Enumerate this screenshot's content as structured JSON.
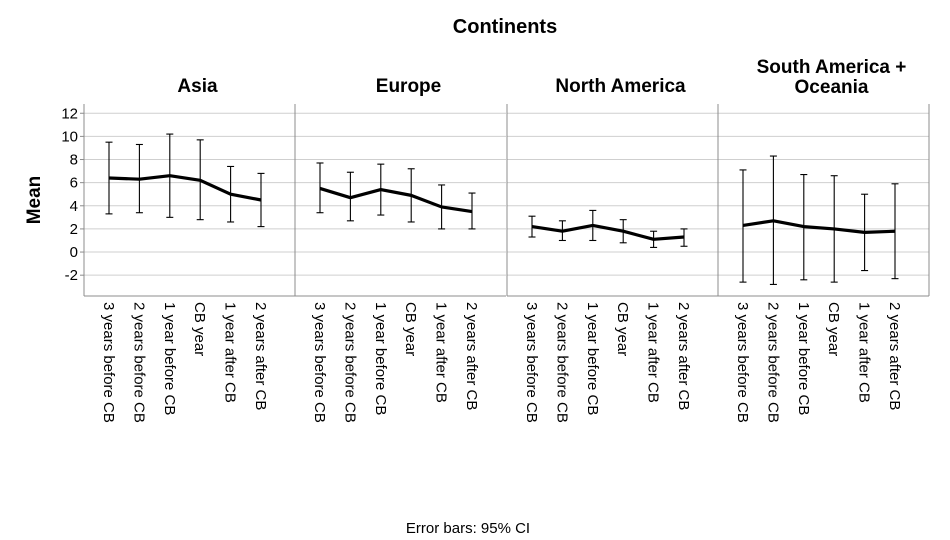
{
  "chart_data": {
    "type": "line",
    "title": "Continents",
    "ylabel": "Mean",
    "footer": "Error bars: 95% CI",
    "ylim": [
      -3.8,
      12.8
    ],
    "yticks": [
      -2,
      0,
      2,
      4,
      6,
      8,
      10,
      12
    ],
    "grid": true,
    "categories": [
      "3 years before CB",
      "2 years before CB",
      "1 year before CB",
      "CB year",
      "1 year after CB",
      "2 years after CB"
    ],
    "panels": [
      {
        "name": "Asia",
        "mean": [
          6.4,
          6.3,
          6.6,
          6.2,
          5.0,
          4.5
        ],
        "lower": [
          3.3,
          3.4,
          3.0,
          2.8,
          2.6,
          2.2
        ],
        "upper": [
          9.5,
          9.3,
          10.2,
          9.7,
          7.4,
          6.8
        ]
      },
      {
        "name": "Europe",
        "mean": [
          5.5,
          4.7,
          5.4,
          4.9,
          3.9,
          3.5
        ],
        "lower": [
          3.4,
          2.7,
          3.2,
          2.6,
          2.0,
          2.0
        ],
        "upper": [
          7.7,
          6.9,
          7.6,
          7.2,
          5.8,
          5.1
        ]
      },
      {
        "name": "North America",
        "mean": [
          2.2,
          1.8,
          2.3,
          1.8,
          1.1,
          1.3
        ],
        "lower": [
          1.3,
          1.0,
          1.0,
          0.8,
          0.4,
          0.5
        ],
        "upper": [
          3.1,
          2.7,
          3.6,
          2.8,
          1.8,
          2.0
        ]
      },
      {
        "name": "South America + Oceania",
        "title_lines": [
          "South America +",
          "Oceania"
        ],
        "mean": [
          2.3,
          2.7,
          2.2,
          2.0,
          1.7,
          1.8
        ],
        "lower": [
          -2.6,
          -2.8,
          -2.4,
          -2.6,
          -1.6,
          -2.3
        ],
        "upper": [
          7.1,
          8.3,
          6.7,
          6.6,
          5.0,
          5.9
        ]
      }
    ]
  }
}
